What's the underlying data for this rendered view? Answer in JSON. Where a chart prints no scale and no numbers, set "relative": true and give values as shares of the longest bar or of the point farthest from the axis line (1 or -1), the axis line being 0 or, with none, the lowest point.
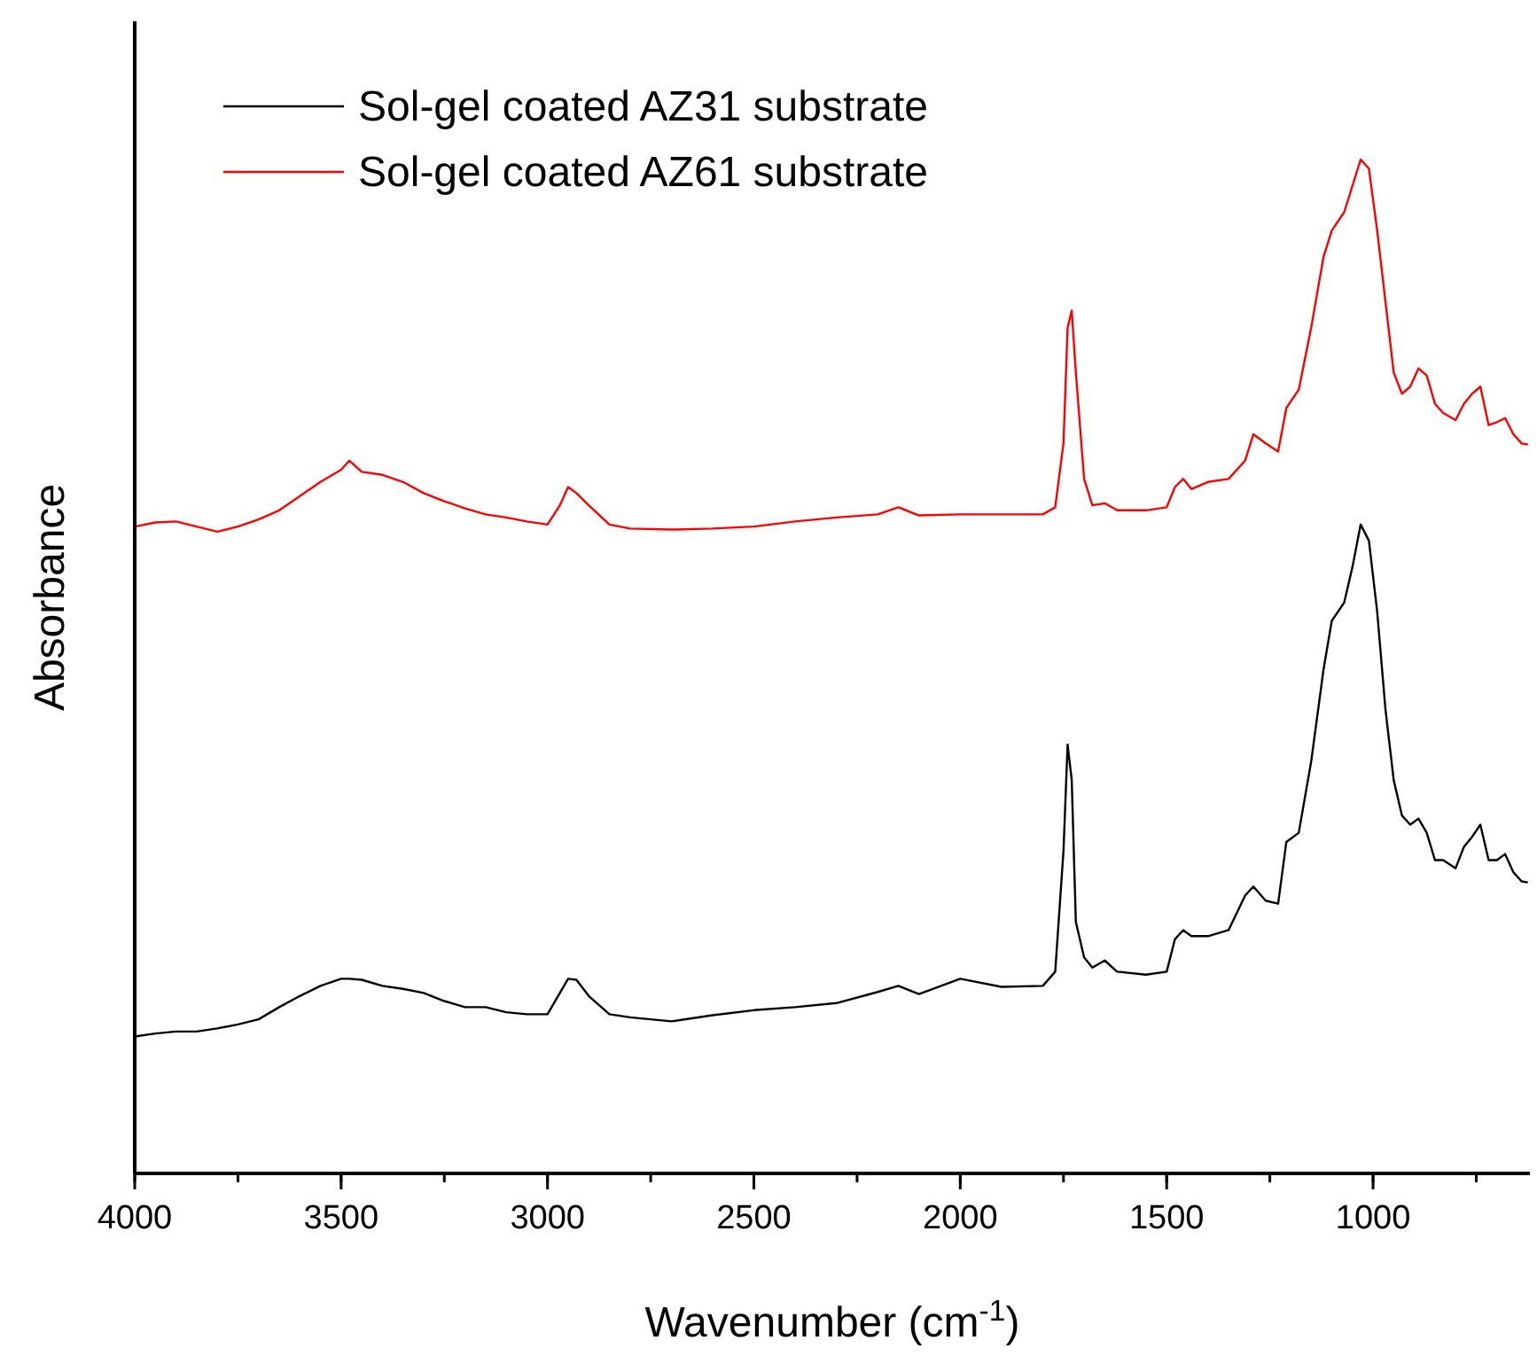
{
  "chart_data": {
    "type": "line",
    "xlabel": "Wavenumber (cm$^{-1}$)",
    "ylabel": "Absorbance",
    "relative": true,
    "legend": "top left",
    "xlim": [
      4000,
      620
    ],
    "xticks": [
      4000,
      3500,
      3000,
      2500,
      2000,
      1500,
      1000
    ],
    "x": [
      4000,
      3950,
      3900,
      3850,
      3800,
      3750,
      3700,
      3650,
      3600,
      3550,
      3500,
      3480,
      3450,
      3400,
      3350,
      3300,
      3250,
      3200,
      3150,
      3100,
      3050,
      3000,
      2970,
      2950,
      2930,
      2900,
      2850,
      2800,
      2700,
      2600,
      2500,
      2400,
      2300,
      2200,
      2150,
      2100,
      2000,
      1900,
      1800,
      1770,
      1750,
      1740,
      1730,
      1720,
      1700,
      1680,
      1650,
      1620,
      1550,
      1500,
      1480,
      1460,
      1440,
      1400,
      1350,
      1310,
      1290,
      1260,
      1230,
      1210,
      1180,
      1150,
      1120,
      1100,
      1070,
      1050,
      1030,
      1010,
      990,
      970,
      950,
      930,
      910,
      890,
      870,
      850,
      830,
      800,
      780,
      760,
      740,
      720,
      700,
      680,
      660,
      640,
      625
    ],
    "series": [
      {
        "name": "Sol-gel coated AZ31 substrate",
        "color": "#000000",
        "values": [
          0.135,
          0.138,
          0.14,
          0.14,
          0.143,
          0.147,
          0.152,
          0.164,
          0.175,
          0.185,
          0.192,
          0.192,
          0.191,
          0.185,
          0.182,
          0.178,
          0.17,
          0.164,
          0.164,
          0.159,
          0.157,
          0.157,
          0.178,
          0.192,
          0.191,
          0.175,
          0.157,
          0.154,
          0.15,
          0.156,
          0.161,
          0.164,
          0.168,
          0.179,
          0.185,
          0.177,
          0.192,
          0.184,
          0.185,
          0.199,
          0.318,
          0.423,
          0.388,
          0.248,
          0.213,
          0.203,
          0.21,
          0.199,
          0.196,
          0.199,
          0.231,
          0.24,
          0.234,
          0.234,
          0.24,
          0.274,
          0.283,
          0.269,
          0.266,
          0.327,
          0.336,
          0.406,
          0.497,
          0.545,
          0.563,
          0.598,
          0.64,
          0.624,
          0.554,
          0.458,
          0.388,
          0.353,
          0.344,
          0.35,
          0.336,
          0.309,
          0.309,
          0.301,
          0.322,
          0.332,
          0.344,
          0.309,
          0.309,
          0.315,
          0.297,
          0.288,
          0.287
        ]
      },
      {
        "name": "Sol-gel coated AZ61 substrate",
        "color": "#ff0000",
        "values": [
          0.638,
          0.642,
          0.643,
          0.638,
          0.633,
          0.638,
          0.645,
          0.654,
          0.668,
          0.682,
          0.694,
          0.703,
          0.692,
          0.689,
          0.682,
          0.671,
          0.663,
          0.656,
          0.65,
          0.647,
          0.643,
          0.64,
          0.659,
          0.677,
          0.671,
          0.659,
          0.64,
          0.636,
          0.635,
          0.636,
          0.638,
          0.643,
          0.647,
          0.65,
          0.657,
          0.649,
          0.65,
          0.65,
          0.65,
          0.657,
          0.72,
          0.834,
          0.851,
          0.79,
          0.685,
          0.659,
          0.661,
          0.654,
          0.654,
          0.657,
          0.677,
          0.685,
          0.675,
          0.682,
          0.685,
          0.703,
          0.729,
          0.72,
          0.712,
          0.755,
          0.773,
          0.834,
          0.904,
          0.93,
          0.948,
          0.974,
          1,
          0.991,
          0.93,
          0.86,
          0.79,
          0.769,
          0.776,
          0.794,
          0.787,
          0.759,
          0.75,
          0.743,
          0.759,
          0.769,
          0.776,
          0.738,
          0.741,
          0.745,
          0.729,
          0.72,
          0.719
        ]
      }
    ]
  }
}
